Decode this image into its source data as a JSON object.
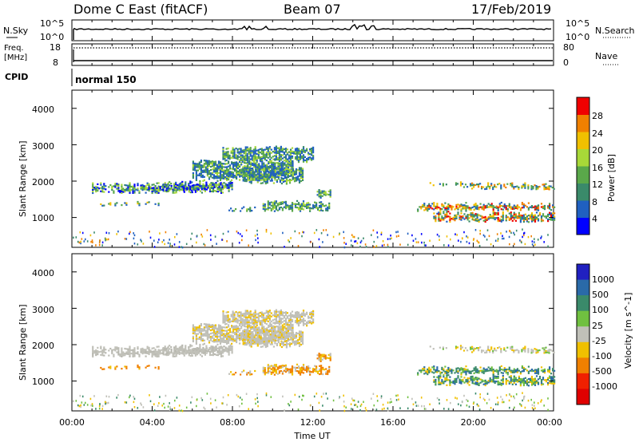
{
  "header": {
    "radar": "Dome C East (fitACF)",
    "beam": "Beam 07",
    "date": "17/Feb/2019"
  },
  "top_panels": {
    "nsky": {
      "label": "N.Sky",
      "right_label": "N.Search",
      "ticks_left": [
        "10^5",
        "10^0"
      ],
      "ticks_right": [
        "10^5",
        "10^0"
      ]
    },
    "freq": {
      "label_line1": "Freq.",
      "label_line2": "[MHz]",
      "ticks_left": [
        "18",
        "8"
      ],
      "right_label": "Nave",
      "ticks_right": [
        "80",
        "0"
      ]
    },
    "cpid": {
      "label": "CPID",
      "value": "normal 150"
    }
  },
  "chart_data": [
    {
      "type": "heatmap",
      "name": "power",
      "ylabel": "Slant Range [km]",
      "ylim": [
        180,
        4500
      ],
      "yticks": [
        "4000",
        "3000",
        "2000",
        "1000"
      ],
      "colorbar_label": "Power [dB]",
      "colorbar_ticks": [
        "28",
        "24",
        "20",
        "16",
        "12",
        "8",
        "4"
      ],
      "colors": [
        "#0000ff",
        "#2060c0",
        "#3a8a6a",
        "#5aa84a",
        "#a8d838",
        "#f0c000",
        "#f08000",
        "#f00000"
      ]
    },
    {
      "type": "heatmap",
      "name": "velocity",
      "ylabel": "Slant Range [km]",
      "ylim": [
        180,
        4500
      ],
      "yticks": [
        "4000",
        "3000",
        "2000",
        "1000"
      ],
      "colorbar_label": "Velocity [m s^-1]",
      "colorbar_ticks": [
        "1000",
        "500",
        "100",
        "25",
        "-25",
        "-100",
        "-500",
        "-1000"
      ],
      "colors": [
        "#2020c0",
        "#2a6aa8",
        "#3a8a6a",
        "#70c040",
        "#c0c0b8",
        "#f0c000",
        "#f08000",
        "#f02000",
        "#e00000"
      ]
    }
  ],
  "time_axis": {
    "label": "Time UT",
    "ticks": [
      "00:00",
      "04:00",
      "08:00",
      "12:00",
      "16:00",
      "20:00",
      "00:00"
    ]
  }
}
